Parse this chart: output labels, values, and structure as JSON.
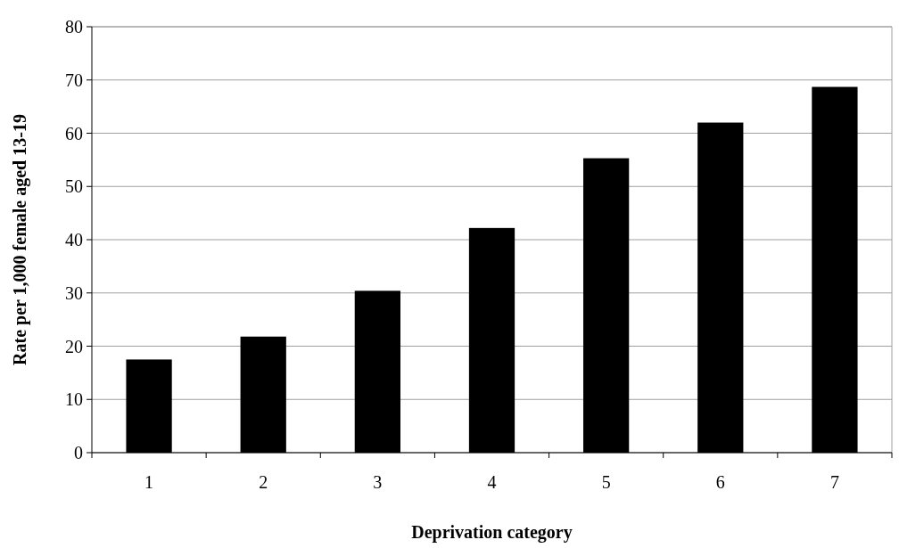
{
  "chart_data": {
    "type": "bar",
    "xlabel": "Deprivation category",
    "ylabel": "Rate per 1,000 female aged 13-19",
    "categories": [
      "1",
      "2",
      "3",
      "4",
      "5",
      "6",
      "7"
    ],
    "values": [
      17.5,
      21.8,
      30.4,
      42.2,
      55.3,
      62,
      68.7
    ],
    "color": "#000000",
    "ylim": [
      0,
      80
    ],
    "yticks": [
      0,
      10,
      20,
      30,
      40,
      50,
      60,
      70,
      80
    ],
    "grid": "y"
  }
}
